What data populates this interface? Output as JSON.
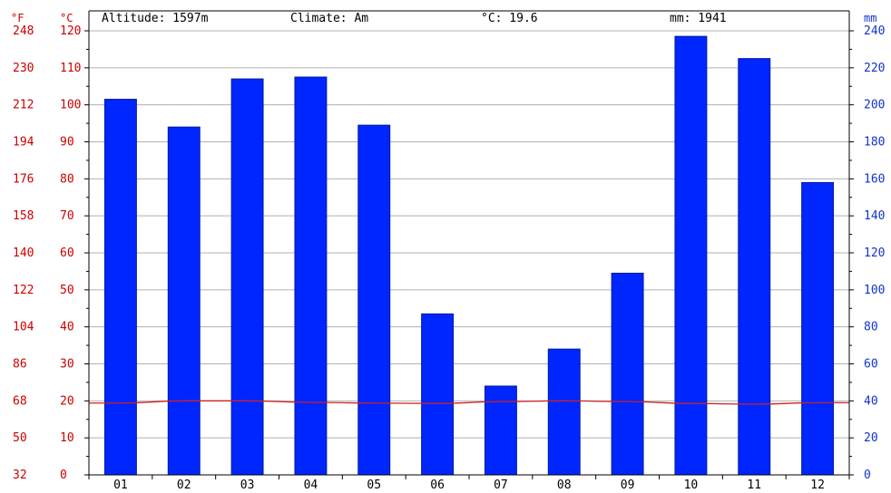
{
  "header": {
    "altitude_label": "Altitude: 1597m",
    "climate_label": "Climate: Am",
    "temp_label": "°C: 19.6",
    "precip_label": "mm: 1941"
  },
  "axis_units": {
    "fahrenheit": "°F",
    "celsius": "°C",
    "mm": "mm"
  },
  "colors": {
    "bar": "#0026ff",
    "bar_stroke": "#001a99",
    "temperature_line": "#cc2222",
    "left_axis_text": "#cc0000",
    "right_axis_text": "#1133cc",
    "grid": "#b0b0b0"
  },
  "chart_data": {
    "type": "bar",
    "categories": [
      "01",
      "02",
      "03",
      "04",
      "05",
      "06",
      "07",
      "08",
      "09",
      "10",
      "11",
      "12"
    ],
    "series": [
      {
        "values": [
          203,
          188,
          214,
          215,
          189,
          87,
          48,
          68,
          109,
          237,
          225,
          158
        ]
      },
      {
        "values": [
          19.4,
          20.0,
          20.0,
          19.6,
          19.4,
          19.3,
          19.8,
          20.0,
          19.8,
          19.3,
          19.1,
          19.5
        ]
      }
    ],
    "left_ticks_f": [
      "32",
      "50",
      "68",
      "86",
      "104",
      "122",
      "140",
      "158",
      "176",
      "194",
      "212",
      "230",
      "248"
    ],
    "left_ticks_c": [
      "0",
      "10",
      "20",
      "30",
      "40",
      "50",
      "60",
      "70",
      "80",
      "90",
      "100",
      "110",
      "120"
    ],
    "right_ticks_mm": [
      "0",
      "20",
      "40",
      "60",
      "80",
      "100",
      "120",
      "140",
      "160",
      "180",
      "200",
      "220",
      "240"
    ],
    "precip_range": [
      0,
      240
    ],
    "temp_range": [
      0,
      120
    ],
    "grid": true
  }
}
